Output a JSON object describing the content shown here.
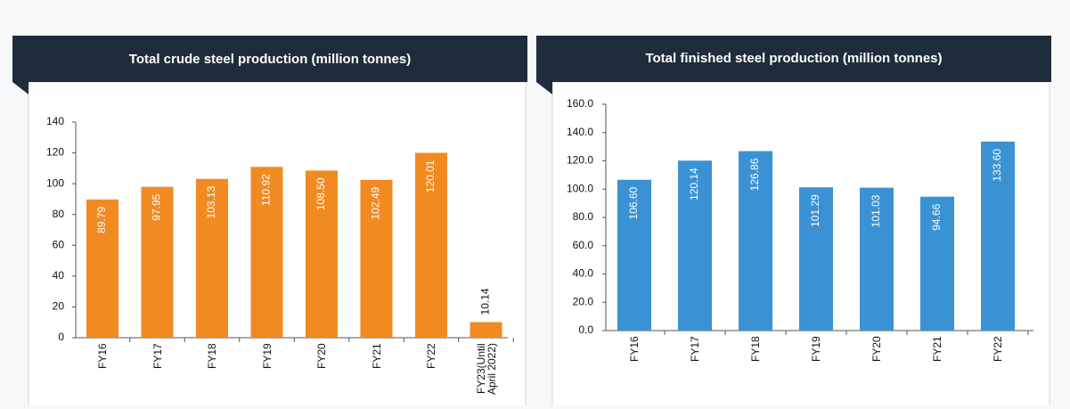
{
  "chart_data": [
    {
      "type": "bar",
      "title": "Total crude steel production (million tonnes)",
      "categories": [
        "FY16",
        "FY17",
        "FY18",
        "FY19",
        "FY20",
        "FY21",
        "FY22",
        "FY23(Until April 2022)"
      ],
      "values": [
        89.79,
        97.95,
        103.13,
        110.92,
        108.5,
        102.49,
        120.01,
        10.14
      ],
      "value_labels": [
        "89.79",
        "97.95",
        "103.13",
        "110.92",
        "108.50",
        "102.49",
        "120.01",
        "10.14"
      ],
      "color": "#f28a22",
      "ylim": [
        0,
        140
      ],
      "yticks": [
        0,
        20,
        40,
        60,
        80,
        100,
        120,
        140
      ]
    },
    {
      "type": "bar",
      "title": "Total finished steel production (million tonnes)",
      "categories": [
        "FY16",
        "FY17",
        "FY18",
        "FY19",
        "FY20",
        "FY21",
        "FY22"
      ],
      "values": [
        106.6,
        120.14,
        126.86,
        101.29,
        101.03,
        94.66,
        133.6
      ],
      "value_labels": [
        "106.60",
        "120.14",
        "126.86",
        "101.29",
        "101.03",
        "94.66",
        "133.60"
      ],
      "color": "#3a92d4",
      "ylim": [
        0,
        160
      ],
      "yticks": [
        {
          "value": 0,
          "label": "0.0"
        },
        {
          "value": 20,
          "label": "20.0"
        },
        {
          "value": 40,
          "label": "40.0"
        },
        {
          "value": 60,
          "label": "60.0"
        },
        {
          "value": 80,
          "label": "80.0"
        },
        {
          "value": 100,
          "label": "100.0"
        },
        {
          "value": 120,
          "label": "120.0"
        },
        {
          "value": 140,
          "label": "140.0"
        },
        {
          "value": 160,
          "label": "160.0"
        }
      ]
    }
  ]
}
